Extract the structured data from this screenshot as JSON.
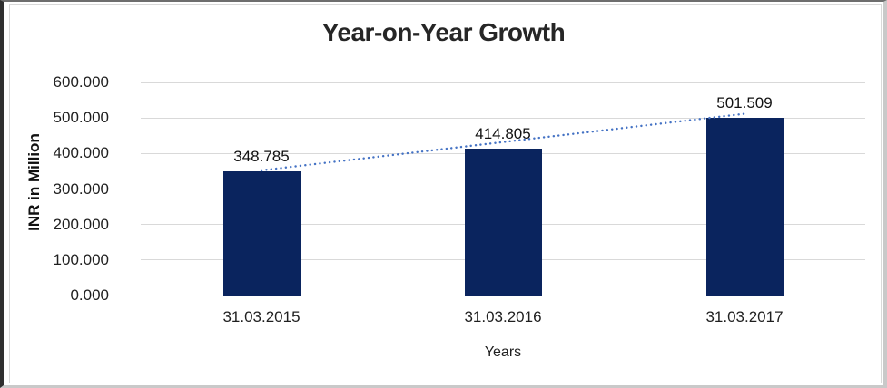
{
  "chart_data": {
    "type": "bar",
    "title": "Year-on-Year Growth",
    "xlabel": "Years",
    "ylabel": "INR in Million",
    "categories": [
      "31.03.2015",
      "31.03.2016",
      "31.03.2017"
    ],
    "values": [
      348.785,
      414.805,
      501.509
    ],
    "data_labels": [
      "348.785",
      "414.805",
      "501.509"
    ],
    "ylim": [
      0,
      600
    ],
    "ytick_step": 100,
    "ytick_labels": [
      "0.000",
      "100.000",
      "200.000",
      "300.000",
      "400.000",
      "500.000",
      "600.000"
    ],
    "grid": true,
    "legend": "none",
    "bar_color": "#0a245e",
    "gridline_color": "#d9d9d9",
    "title_color": "#262626",
    "label_color": "#111111",
    "trendline": {
      "type": "linear",
      "style": "dotted",
      "color": "#4472c4"
    }
  }
}
